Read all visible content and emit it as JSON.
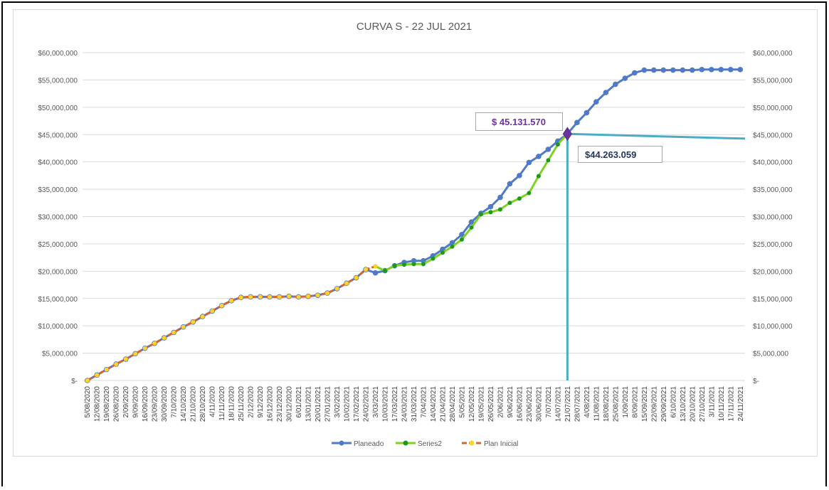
{
  "chart_data": {
    "type": "line",
    "title": "CURVA S - 22 JUL 2021",
    "categories": [
      "5/08/2020",
      "12/08/2020",
      "19/08/2020",
      "26/08/2020",
      "2/09/2020",
      "9/09/2020",
      "16/09/2020",
      "23/09/2020",
      "30/09/2020",
      "7/10/2020",
      "14/10/2020",
      "21/10/2020",
      "28/10/2020",
      "4/11/2020",
      "11/11/2020",
      "18/11/2020",
      "25/11/2020",
      "2/12/2020",
      "9/12/2020",
      "16/12/2020",
      "23/12/2020",
      "30/12/2020",
      "6/01/2021",
      "13/01/2021",
      "20/01/2021",
      "27/01/2021",
      "3/02/2021",
      "10/02/2021",
      "17/02/2021",
      "24/02/2021",
      "3/03/2021",
      "10/03/2021",
      "17/03/2021",
      "24/03/2021",
      "31/03/2021",
      "7/04/2021",
      "14/04/2021",
      "21/04/2021",
      "28/04/2021",
      "5/05/2021",
      "12/05/2021",
      "19/05/2021",
      "26/05/2021",
      "2/06/2021",
      "9/06/2021",
      "16/06/2021",
      "23/06/2021",
      "30/06/2021",
      "7/07/2021",
      "14/07/2021",
      "21/07/2021",
      "28/07/2021",
      "4/08/2021",
      "11/08/2021",
      "18/08/2021",
      "25/08/2021",
      "1/09/2021",
      "8/09/2021",
      "15/09/2021",
      "22/09/2021",
      "29/09/2021",
      "6/10/2021",
      "13/10/2021",
      "20/10/2021",
      "27/10/2021",
      "3/11/2021",
      "10/11/2021",
      "17/11/2021",
      "24/11/2021"
    ],
    "series": [
      {
        "name": "Planeado",
        "color": "#4f7ac7",
        "marker_color": "#4f7ac7",
        "dashed": false,
        "values": [
          0,
          1000000,
          2000000,
          3000000,
          3900000,
          4900000,
          5900000,
          6800000,
          7800000,
          8800000,
          9800000,
          10700000,
          11700000,
          12700000,
          13700000,
          14600000,
          15200000,
          15300000,
          15300000,
          15300000,
          15300000,
          15400000,
          15300000,
          15400000,
          15600000,
          16000000,
          16800000,
          17800000,
          18800000,
          20300000,
          19700000,
          20100000,
          21000000,
          21600000,
          21900000,
          21900000,
          22800000,
          24000000,
          25200000,
          26700000,
          29000000,
          30600000,
          31800000,
          33500000,
          36000000,
          37500000,
          39900000,
          41000000,
          42300000,
          43800000,
          45131570,
          47200000,
          49000000,
          51000000,
          52700000,
          54200000,
          55300000,
          56300000,
          56800000,
          56800000,
          56800000,
          56800000,
          56800000,
          56800000,
          56900000,
          56900000,
          56900000,
          56900000,
          56900000
        ]
      },
      {
        "name": "Series2",
        "color": "#7ed321",
        "marker_color": "#1d9a1d",
        "dashed": false,
        "values": [
          null,
          null,
          null,
          null,
          null,
          null,
          null,
          null,
          null,
          null,
          null,
          null,
          null,
          null,
          null,
          null,
          null,
          null,
          null,
          null,
          null,
          null,
          null,
          null,
          null,
          null,
          null,
          null,
          null,
          null,
          20900000,
          20100000,
          21000000,
          21200000,
          21300000,
          21300000,
          22300000,
          23400000,
          24500000,
          25800000,
          28000000,
          30400000,
          30800000,
          31300000,
          32500000,
          33300000,
          34300000,
          37400000,
          40300000,
          43200000,
          45131570,
          null,
          null,
          null,
          null,
          null,
          null,
          null,
          null,
          null,
          null,
          null,
          null,
          null,
          null,
          null,
          null,
          null,
          null
        ]
      },
      {
        "name": "Plan Inicial",
        "color": "#d9652c",
        "marker_color": "#ffd42a",
        "dashed": true,
        "values": [
          0,
          1000000,
          2000000,
          3000000,
          3900000,
          4900000,
          5900000,
          6800000,
          7800000,
          8800000,
          9800000,
          10700000,
          11700000,
          12700000,
          13700000,
          14600000,
          15200000,
          15300000,
          15300000,
          15300000,
          15300000,
          15400000,
          15300000,
          15400000,
          15600000,
          16000000,
          16800000,
          17800000,
          18800000,
          20300000,
          20900000,
          null,
          null,
          null,
          null,
          null,
          null,
          null,
          null,
          null,
          null,
          null,
          null,
          null,
          null,
          null,
          null,
          null,
          null,
          null,
          null,
          null,
          null,
          null,
          null,
          null,
          null,
          null,
          null,
          null,
          null,
          null,
          null,
          null,
          null,
          null,
          null,
          null,
          null
        ]
      }
    ],
    "ylim": [
      0,
      60000000
    ],
    "yticks": [
      {
        "value": 0,
        "label": "$-"
      },
      {
        "value": 5000000,
        "label": "$5,000,000"
      },
      {
        "value": 10000000,
        "label": "$10,000,000"
      },
      {
        "value": 15000000,
        "label": "$15,000,000"
      },
      {
        "value": 20000000,
        "label": "$20,000,000"
      },
      {
        "value": 25000000,
        "label": "$25,000,000"
      },
      {
        "value": 30000000,
        "label": "$30,000,000"
      },
      {
        "value": 35000000,
        "label": "$35,000,000"
      },
      {
        "value": 40000000,
        "label": "$40,000,000"
      },
      {
        "value": 45000000,
        "label": "$45,000,000"
      },
      {
        "value": 50000000,
        "label": "$50,000,000"
      },
      {
        "value": 55000000,
        "label": "$55,000,000"
      },
      {
        "value": 60000000,
        "label": "$60,000,000"
      }
    ],
    "grid": true,
    "legend": "bottom",
    "annotations": [
      {
        "label": "$ 45.131.570",
        "value": 45131570,
        "color": "#7030a0"
      },
      {
        "label": "$44.263.059",
        "value": 44263059,
        "color": "#1f3864"
      }
    ],
    "reference_line_color": "#4bacc6"
  }
}
